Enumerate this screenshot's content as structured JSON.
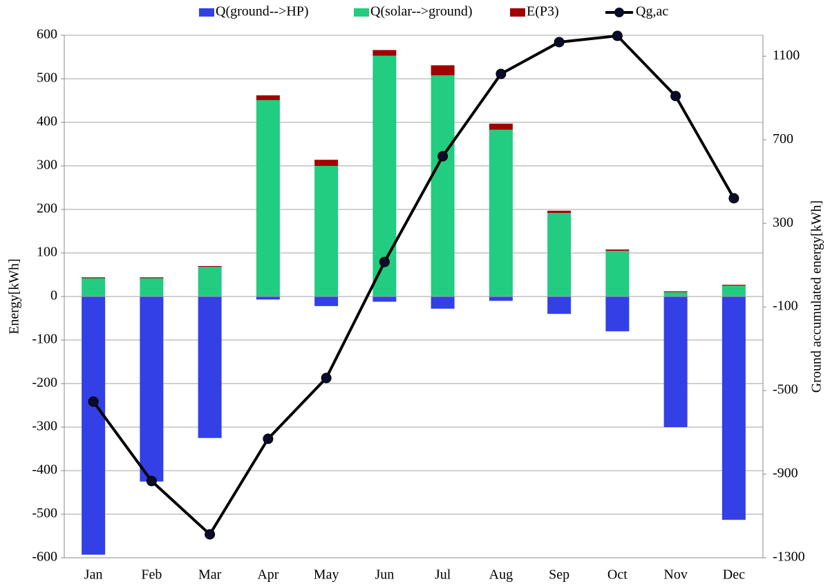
{
  "chart_data": {
    "type": "bar",
    "y_label": "Energy[kWh]",
    "y2_label": "Ground accumulated energy[kWh]",
    "categories": [
      "Jan",
      "Feb",
      "Mar",
      "Apr",
      "May",
      "Jun",
      "Jul",
      "Aug",
      "Sep",
      "Oct",
      "Nov",
      "Dec"
    ],
    "series": [
      {
        "name": "Q(ground-->HP)",
        "color": "#3340e6",
        "values": [
          -593,
          -425,
          -325,
          -7,
          -22,
          -12,
          -28,
          -10,
          -40,
          -80,
          -300,
          -513
        ]
      },
      {
        "name": "Q(solar-->ground)",
        "color": "#22cc80",
        "values": [
          42,
          42,
          68,
          451,
          300,
          553,
          508,
          383,
          192,
          105,
          10,
          25
        ]
      },
      {
        "name": "E(P3)",
        "color": "#a00000",
        "values": [
          2,
          2,
          2,
          11,
          14,
          13,
          23,
          14,
          5,
          3,
          2,
          2
        ]
      },
      {
        "name": "Qg,ac",
        "color": "#000000",
        "type": "line",
        "axis": "y2",
        "values": [
          -553,
          -933,
          -1188,
          -731,
          -440,
          115,
          621,
          1015,
          1167,
          1197,
          909,
          420
        ]
      }
    ],
    "ylim": [
      -600,
      600
    ],
    "yticks": [
      -600,
      -500,
      -400,
      -300,
      -200,
      -100,
      0,
      100,
      200,
      300,
      400,
      500,
      600
    ],
    "y2lim": [
      -1300,
      1200
    ],
    "y2ticks": [
      -1300,
      -900,
      -500,
      -100,
      300,
      700,
      1100
    ],
    "grid": true,
    "legend": "top"
  }
}
